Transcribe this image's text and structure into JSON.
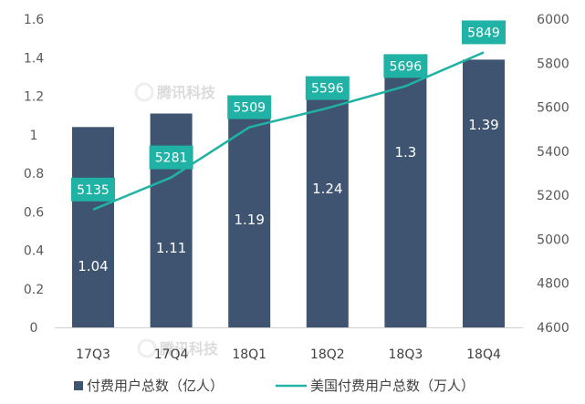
{
  "chart_data": {
    "type": "bar+line",
    "categories": [
      "17Q3",
      "17Q4",
      "18Q1",
      "18Q2",
      "18Q3",
      "18Q4"
    ],
    "series": [
      {
        "name": "付费用户总数（亿人）",
        "type": "bar",
        "axis": "left",
        "values": [
          1.04,
          1.11,
          1.19,
          1.24,
          1.3,
          1.39
        ],
        "labels": [
          "1.04",
          "1.11",
          "1.19",
          "1.24",
          "1.3",
          "1.39"
        ],
        "color": "#3e5470"
      },
      {
        "name": "美国付费用户总数（万人）",
        "type": "line",
        "axis": "right",
        "values": [
          5135,
          5281,
          5509,
          5596,
          5696,
          5849
        ],
        "labels": [
          "5135",
          "5281",
          "5509",
          "5596",
          "5696",
          "5849"
        ],
        "color": "#20b2a5"
      }
    ],
    "y_left": {
      "min": 0,
      "max": 1.6,
      "ticks": [
        0,
        0.2,
        0.4,
        0.6,
        0.8,
        1.0,
        1.2,
        1.4,
        1.6
      ],
      "tick_labels": [
        "0",
        "0.2",
        "0.4",
        "0.6",
        "0.8",
        "1",
        "1.2",
        "1.4",
        "1.6"
      ]
    },
    "y_right": {
      "min": 4600,
      "max": 6000,
      "ticks": [
        4600,
        4800,
        5000,
        5200,
        5400,
        5600,
        5800,
        6000
      ],
      "tick_labels": [
        "4600",
        "4800",
        "5000",
        "5200",
        "5400",
        "5600",
        "5800",
        "6000"
      ]
    },
    "grid": false,
    "legend_position": "bottom",
    "watermark": "腾讯科技"
  }
}
